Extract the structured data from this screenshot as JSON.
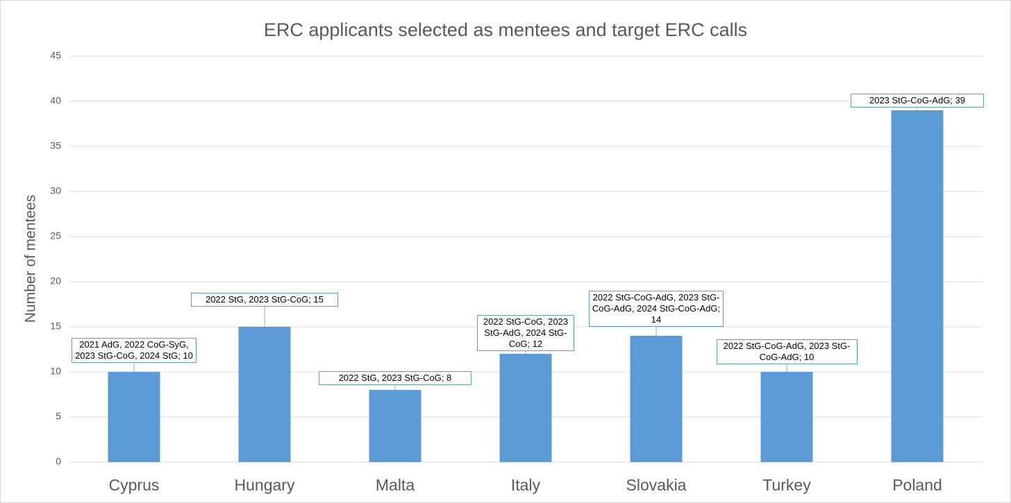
{
  "chart_data": {
    "type": "bar",
    "title": "ERC applicants selected as mentees and target ERC calls",
    "y_label": "Number of mentees",
    "categories": [
      "Cyprus",
      "Hungary",
      "Malta",
      "Italy",
      "Slovakia",
      "Turkey",
      "Poland"
    ],
    "values": [
      10,
      15,
      8,
      12,
      14,
      10,
      39
    ],
    "value_labels": [
      "2021 AdG, 2022 CoG-SyG, 2023 StG-CoG, 2024 StG; 10",
      "2022 StG, 2023 StG-CoG; 15",
      "2022 StG, 2023 StG-CoG; 8",
      "2022 StG-CoG, 2023 StG-AdG, 2024 StG-CoG; 12",
      "2022 StG-CoG-AdG, 2023 StG-CoG-AdG, 2024 StG-CoG-AdG; 14",
      "2022 StG-CoG-AdG, 2023 StG-CoG-AdG; 10",
      "2023 StG-CoG-AdG; 39"
    ],
    "color": "#5b9bd5",
    "ylim": [
      0,
      45
    ],
    "yticks": [
      0,
      5,
      10,
      15,
      20,
      25,
      30,
      35,
      40,
      45
    ],
    "grid": true
  }
}
